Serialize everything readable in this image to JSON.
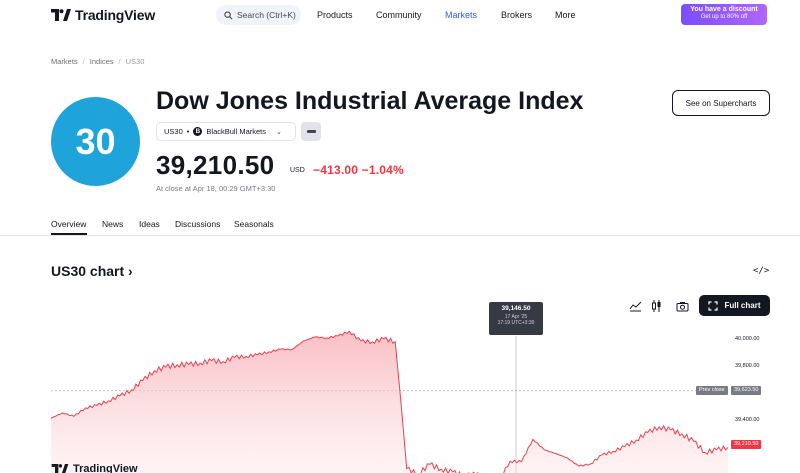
{
  "nav": {
    "logo_text": "TradingView",
    "search_placeholder": "Search (Ctrl+K)",
    "links": [
      "Products",
      "Community",
      "Markets",
      "Brokers",
      "More"
    ],
    "active_link": "Markets",
    "promo_line1": "You have a discount",
    "promo_line2": "Get up to 80% off"
  },
  "breadcrumb": [
    "Markets",
    "Indices",
    "US30"
  ],
  "header": {
    "badge": "30",
    "title": "Dow Jones Industrial Average Index",
    "supercharts_button": "See on Supercharts",
    "symbol": "US30",
    "symbol_dot": "•",
    "broker_icon_letter": "B",
    "broker": "BlackBull Markets",
    "price": "39,210.50",
    "currency": "USD",
    "change": "−413.00 −1.04%",
    "close_note": "At close at Apr 18, 00:29 GMT+3:30"
  },
  "tabs": [
    "Overview",
    "News",
    "Ideas",
    "Discussions",
    "Seasonals"
  ],
  "active_tab": "Overview",
  "chart_section": {
    "heading": "US30 chart",
    "heading_chevron": "›",
    "embed_symbol": "</>",
    "full_chart_button": "Full chart",
    "tooltip_value": "39,146.50",
    "tooltip_date": "17 Apr '25",
    "tooltip_time": "17:19 UTC+3:30",
    "prev_close_label": "Prev close",
    "prev_close_value": "39,623.50",
    "last_value": "39,210.50",
    "watermark": "TradingView"
  },
  "colors": {
    "accent": "#2962ff",
    "negative": "#f23645",
    "badge": "#1ea3da"
  },
  "chart_data": {
    "type": "area",
    "series": [
      {
        "values": [
          39430,
          39470,
          39440,
          39500,
          39520,
          39560,
          39600,
          39640,
          39700,
          39760,
          39780,
          39800,
          39810,
          39830,
          39850,
          39840,
          39870,
          39880,
          39900,
          39930,
          39950,
          39940,
          39990,
          40010,
          40000,
          40020,
          40060,
          39990,
          39980,
          40000,
          39980,
          39050,
          39020,
          39100,
          39060,
          39030,
          38990,
          39000,
          38970,
          38950,
          39100,
          39090,
          39250,
          39170,
          39150,
          39130,
          39080,
          39100,
          39160,
          39180,
          39210,
          39260,
          39320,
          39360,
          39330,
          39290,
          39230,
          39150,
          39180,
          39210
        ]
      }
    ],
    "y_ticks": [
      "40,000.00",
      "39,800.00",
      "39,400.00"
    ],
    "ylim": [
      38900,
      40100
    ],
    "prev_close": 39623.5,
    "last": 39210.5
  }
}
